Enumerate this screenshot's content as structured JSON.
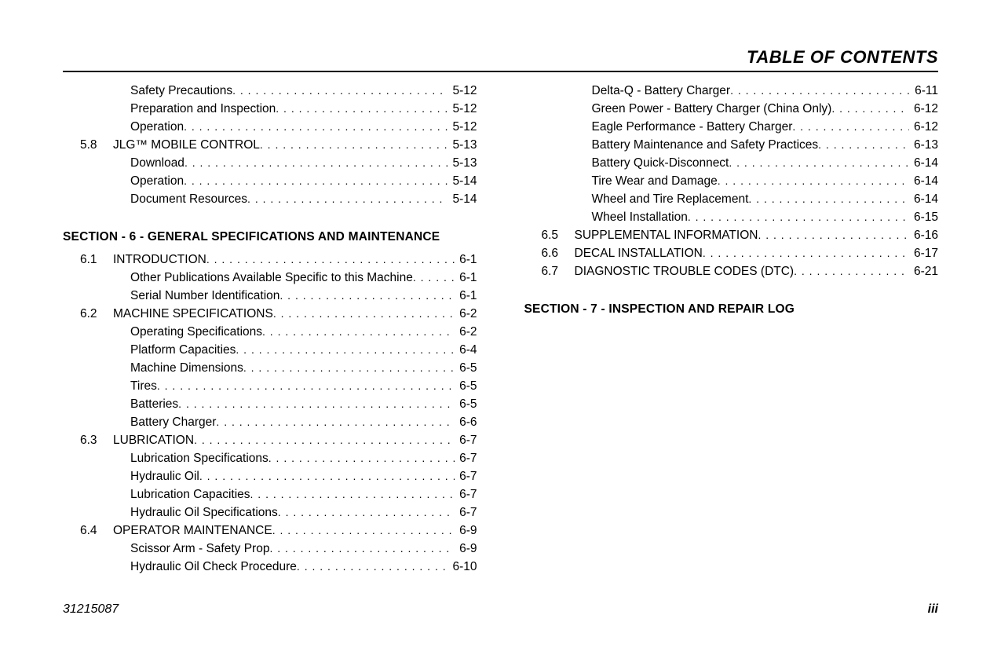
{
  "header": {
    "title": "TABLE OF CONTENTS"
  },
  "footer": {
    "doc_number": "31215087",
    "page_number": "iii"
  },
  "left_column": {
    "pre_entries": [
      {
        "level": 1,
        "num": "",
        "label": "Safety Precautions",
        "page": "5-12"
      },
      {
        "level": 1,
        "num": "",
        "label": "Preparation and Inspection",
        "page": "5-12"
      },
      {
        "level": 1,
        "num": "",
        "label": "Operation",
        "page": "5-12"
      },
      {
        "level": 0,
        "num": "5.8",
        "label": "JLG™ MOBILE CONTROL",
        "page": "5-13"
      },
      {
        "level": 1,
        "num": "",
        "label": "Download",
        "page": "5-13"
      },
      {
        "level": 1,
        "num": "",
        "label": "Operation",
        "page": "5-14"
      },
      {
        "level": 1,
        "num": "",
        "label": "Document Resources",
        "page": "5-14"
      }
    ],
    "section6": {
      "heading": "SECTION - 6 - GENERAL SPECIFICATIONS AND MAINTENANCE",
      "entries": [
        {
          "level": 0,
          "num": "6.1",
          "label": "INTRODUCTION",
          "page": "6-1"
        },
        {
          "level": 1,
          "num": "",
          "label": "Other Publications Available Specific to this Machine",
          "page": "6-1"
        },
        {
          "level": 1,
          "num": "",
          "label": "Serial Number Identification",
          "page": "6-1"
        },
        {
          "level": 0,
          "num": "6.2",
          "label": "MACHINE SPECIFICATIONS",
          "page": "6-2"
        },
        {
          "level": 1,
          "num": "",
          "label": "Operating Specifications",
          "page": "6-2"
        },
        {
          "level": 1,
          "num": "",
          "label": "Platform Capacities",
          "page": "6-4"
        },
        {
          "level": 1,
          "num": "",
          "label": "Machine Dimensions",
          "page": "6-5"
        },
        {
          "level": 1,
          "num": "",
          "label": "Tires",
          "page": "6-5"
        },
        {
          "level": 1,
          "num": "",
          "label": "Batteries",
          "page": "6-5"
        },
        {
          "level": 1,
          "num": "",
          "label": "Battery Charger",
          "page": "6-6"
        },
        {
          "level": 0,
          "num": "6.3",
          "label": "LUBRICATION",
          "page": "6-7"
        },
        {
          "level": 1,
          "num": "",
          "label": "Lubrication Specifications",
          "page": "6-7"
        },
        {
          "level": 1,
          "num": "",
          "label": "Hydraulic Oil",
          "page": "6-7"
        },
        {
          "level": 1,
          "num": "",
          "label": "Lubrication Capacities",
          "page": "6-7"
        },
        {
          "level": 1,
          "num": "",
          "label": "Hydraulic Oil Specifications",
          "page": "6-7"
        },
        {
          "level": 0,
          "num": "6.4",
          "label": "OPERATOR MAINTENANCE",
          "page": "6-9"
        },
        {
          "level": 1,
          "num": "",
          "label": "Scissor Arm - Safety Prop",
          "page": "6-9"
        },
        {
          "level": 1,
          "num": "",
          "label": "Hydraulic Oil Check Procedure",
          "page": "6-10"
        }
      ]
    }
  },
  "right_column": {
    "entries": [
      {
        "level": 1,
        "num": "",
        "label": "Delta-Q - Battery Charger",
        "page": "6-11"
      },
      {
        "level": 1,
        "num": "",
        "label": "Green Power - Battery Charger (China Only)",
        "page": "6-12"
      },
      {
        "level": 1,
        "num": "",
        "label": "Eagle Performance - Battery Charger",
        "page": "6-12"
      },
      {
        "level": 1,
        "num": "",
        "label": "Battery Maintenance and Safety Practices",
        "page": "6-13"
      },
      {
        "level": 1,
        "num": "",
        "label": "Battery Quick-Disconnect",
        "page": "6-14"
      },
      {
        "level": 1,
        "num": "",
        "label": "Tire Wear and Damage",
        "page": "6-14"
      },
      {
        "level": 1,
        "num": "",
        "label": "Wheel and Tire Replacement",
        "page": "6-14"
      },
      {
        "level": 1,
        "num": "",
        "label": "Wheel Installation",
        "page": "6-15"
      },
      {
        "level": 0,
        "num": "6.5",
        "label": "SUPPLEMENTAL INFORMATION",
        "page": "6-16"
      },
      {
        "level": 0,
        "num": "6.6",
        "label": "DECAL INSTALLATION",
        "page": "6-17"
      },
      {
        "level": 0,
        "num": "6.7",
        "label": "DIAGNOSTIC TROUBLE CODES (DTC)",
        "page": "6-21"
      }
    ],
    "section7": {
      "heading": "SECTION - 7 - INSPECTION AND REPAIR LOG"
    }
  }
}
